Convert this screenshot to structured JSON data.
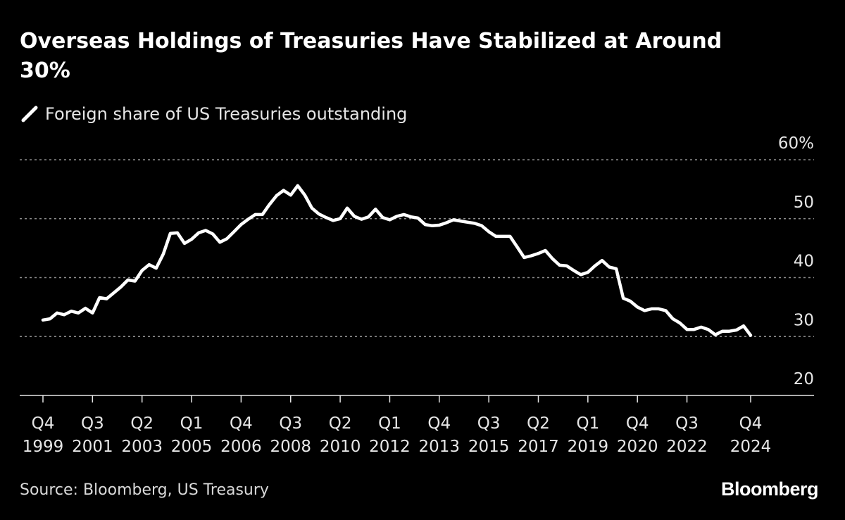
{
  "title": "Overseas Holdings of Treasuries Have Stabilized at Around 30%",
  "source": "Source: Bloomberg, US Treasury",
  "logo": "Bloomberg",
  "colors": {
    "background": "#000000",
    "line": "#ffffff",
    "grid": "#8c8c8c",
    "text": "#e6e6e6"
  },
  "chart_data": {
    "type": "line",
    "title": "Overseas Holdings of Treasuries Have Stabilized at Around 30%",
    "xlabel": "",
    "ylabel": "",
    "ylim": [
      20,
      60
    ],
    "y_ticks": [
      20,
      30,
      40,
      50,
      60
    ],
    "y_tick_labels": [
      "20",
      "30",
      "40",
      "50",
      "60%"
    ],
    "grid": true,
    "legend_position": "top-left",
    "x_ticks": [
      {
        "quarter": "Q4",
        "year": "1999",
        "x": 1999.75
      },
      {
        "quarter": "Q3",
        "year": "2001",
        "x": 2001.5
      },
      {
        "quarter": "Q2",
        "year": "2003",
        "x": 2003.25
      },
      {
        "quarter": "Q1",
        "year": "2005",
        "x": 2005.0
      },
      {
        "quarter": "Q4",
        "year": "2006",
        "x": 2006.75
      },
      {
        "quarter": "Q3",
        "year": "2008",
        "x": 2008.5
      },
      {
        "quarter": "Q2",
        "year": "2010",
        "x": 2010.25
      },
      {
        "quarter": "Q1",
        "year": "2012",
        "x": 2012.0
      },
      {
        "quarter": "Q4",
        "year": "2013",
        "x": 2013.75
      },
      {
        "quarter": "Q3",
        "year": "2015",
        "x": 2015.5
      },
      {
        "quarter": "Q2",
        "year": "2017",
        "x": 2017.25
      },
      {
        "quarter": "Q1",
        "year": "2019",
        "x": 2019.0
      },
      {
        "quarter": "Q4",
        "year": "2020",
        "x": 2020.75
      },
      {
        "quarter": "Q3",
        "year": "2022",
        "x": 2022.5
      },
      {
        "quarter": "Q4",
        "year": "2024",
        "x": 2024.75
      }
    ],
    "series": [
      {
        "name": "Foreign share of US Treasuries outstanding",
        "x": [
          1999.75,
          2000.0,
          2000.25,
          2000.5,
          2000.75,
          2001.0,
          2001.25,
          2001.5,
          2001.75,
          2002.0,
          2002.25,
          2002.5,
          2002.75,
          2003.0,
          2003.25,
          2003.5,
          2003.75,
          2004.0,
          2004.25,
          2004.5,
          2004.75,
          2005.0,
          2005.25,
          2005.5,
          2005.75,
          2006.0,
          2006.25,
          2006.5,
          2006.75,
          2007.0,
          2007.25,
          2007.5,
          2007.75,
          2008.0,
          2008.25,
          2008.5,
          2008.75,
          2009.0,
          2009.25,
          2009.5,
          2009.75,
          2010.0,
          2010.25,
          2010.5,
          2010.75,
          2011.0,
          2011.25,
          2011.5,
          2011.75,
          2012.0,
          2012.25,
          2012.5,
          2012.75,
          2013.0,
          2013.25,
          2013.5,
          2013.75,
          2014.0,
          2014.25,
          2014.5,
          2014.75,
          2015.0,
          2015.25,
          2015.5,
          2015.75,
          2016.0,
          2016.25,
          2016.5,
          2016.75,
          2017.0,
          2017.25,
          2017.5,
          2017.75,
          2018.0,
          2018.25,
          2018.5,
          2018.75,
          2019.0,
          2019.25,
          2019.5,
          2019.75,
          2020.0,
          2020.25,
          2020.5,
          2020.75,
          2021.0,
          2021.25,
          2021.5,
          2021.75,
          2022.0,
          2022.25,
          2022.5,
          2022.75,
          2023.0,
          2023.25,
          2023.5,
          2023.75,
          2024.0,
          2024.25,
          2024.5,
          2024.75
        ],
        "values": [
          32.8,
          33.0,
          34.0,
          33.7,
          34.3,
          34.0,
          34.8,
          34.0,
          36.6,
          36.4,
          37.4,
          38.4,
          39.6,
          39.4,
          41.2,
          42.2,
          41.6,
          44.0,
          47.5,
          47.6,
          45.8,
          46.5,
          47.6,
          48.0,
          47.4,
          46.0,
          46.6,
          47.8,
          49.0,
          49.9,
          50.7,
          50.7,
          52.4,
          53.9,
          54.8,
          54.0,
          55.6,
          54.0,
          51.8,
          50.8,
          50.2,
          49.7,
          50.0,
          51.8,
          50.4,
          49.9,
          50.3,
          51.6,
          50.2,
          49.8,
          50.4,
          50.7,
          50.3,
          50.1,
          49.0,
          48.8,
          48.9,
          49.3,
          49.8,
          49.6,
          49.4,
          49.2,
          48.8,
          47.8,
          47.0,
          47.0,
          47.0,
          45.2,
          43.4,
          43.7,
          44.1,
          44.6,
          43.2,
          42.1,
          42.0,
          41.2,
          40.5,
          40.9,
          42.0,
          42.9,
          41.8,
          41.5,
          36.5,
          36.0,
          35.0,
          34.4,
          34.7,
          34.7,
          34.4,
          33.0,
          32.3,
          31.2,
          31.2,
          31.6,
          31.2,
          30.3,
          30.9,
          30.9,
          31.1,
          31.8,
          30.2
        ]
      }
    ]
  }
}
